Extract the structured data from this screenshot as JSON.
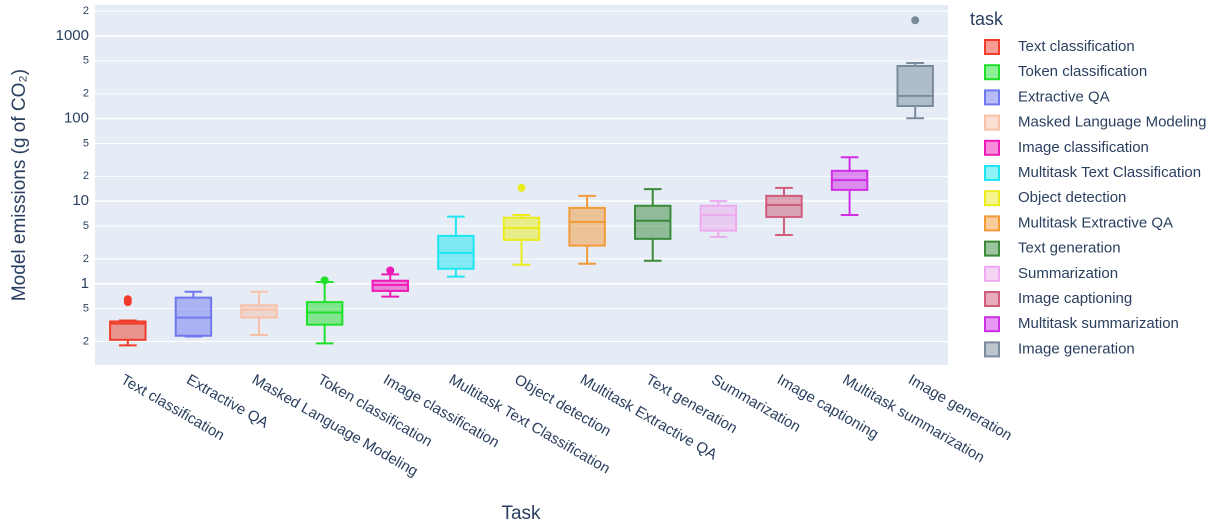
{
  "chart_data": {
    "type": "box",
    "y_label": "Model emissions (g of CO₂)",
    "x_label": "Task",
    "legend_title": "task",
    "log_y": true,
    "grid": true,
    "legend_position": "right",
    "categories": [
      "Text classification",
      "Extractive QA",
      "Masked Language Modeling",
      "Token classification",
      "Image classification",
      "Multitask Text Classification",
      "Object detection",
      "Multitask Extractive QA",
      "Text generation",
      "Summarization",
      "Image captioning",
      "Multitask summarization",
      "Image generation"
    ],
    "ylim": [
      0.104,
      2370
    ],
    "yticks": [
      {
        "value": 0.2,
        "label": "2"
      },
      {
        "value": 0.5,
        "label": "5"
      },
      1,
      {
        "value": 2,
        "label": "2"
      },
      {
        "value": 5,
        "label": "5"
      },
      10,
      {
        "value": 20,
        "label": "2"
      },
      {
        "value": 50,
        "label": "5"
      },
      100,
      {
        "value": 200,
        "label": "2"
      },
      {
        "value": 500,
        "label": "5"
      },
      1000,
      {
        "value": 2000,
        "label": "2"
      }
    ],
    "series": [
      {
        "name": "Text classification",
        "color": "#f03c28",
        "min": 0.18,
        "q1": 0.21,
        "median": 0.33,
        "q3": 0.35,
        "max": 0.36,
        "outliers": [
          0.6,
          0.65
        ]
      },
      {
        "name": "Token classification",
        "color": "#1fe02a",
        "min": 0.19,
        "q1": 0.32,
        "median": 0.45,
        "q3": 0.6,
        "max": 1.05,
        "outliers": [
          1.1
        ]
      },
      {
        "name": "Extractive QA",
        "color": "#6f78ee",
        "min": 0.23,
        "q1": 0.235,
        "median": 0.39,
        "q3": 0.68,
        "max": 0.8
      },
      {
        "name": "Masked Language Modeling",
        "color": "#f8c0a8",
        "min": 0.24,
        "q1": 0.39,
        "median": 0.485,
        "q3": 0.55,
        "max": 0.8
      },
      {
        "name": "Image classification",
        "color": "#ee1ab8",
        "min": 0.7,
        "q1": 0.82,
        "median": 0.97,
        "q3": 1.09,
        "max": 1.3,
        "outliers": [
          1.45
        ]
      },
      {
        "name": "Multitask Text Classification",
        "color": "#1ee6f0",
        "min": 1.22,
        "q1": 1.52,
        "median": 2.37,
        "q3": 3.8,
        "max": 6.5
      },
      {
        "name": "Object detection",
        "color": "#ecec1c",
        "min": 1.7,
        "q1": 3.4,
        "median": 4.75,
        "q3": 6.3,
        "max": 6.8,
        "outliers": [
          14.5
        ]
      },
      {
        "name": "Multitask Extractive QA",
        "color": "#f29a38",
        "min": 1.75,
        "q1": 2.9,
        "median": 5.6,
        "q3": 8.3,
        "max": 11.6
      },
      {
        "name": "Text generation",
        "color": "#3a8a3a",
        "min": 1.9,
        "q1": 3.5,
        "median": 5.8,
        "q3": 8.8,
        "max": 14
      },
      {
        "name": "Summarization",
        "color": "#eeaaee",
        "min": 3.7,
        "q1": 4.4,
        "median": 6.8,
        "q3": 8.8,
        "max": 10
      },
      {
        "name": "Image captioning",
        "color": "#d05c7a",
        "min": 3.9,
        "q1": 6.45,
        "median": 9,
        "q3": 11.6,
        "max": 14.5
      },
      {
        "name": "Multitask summarization",
        "color": "#d02ee6",
        "min": 6.8,
        "q1": 13.7,
        "median": 18,
        "q3": 23.3,
        "max": 34
      },
      {
        "name": "Image generation",
        "color": "#7a8c9c",
        "min": 101,
        "q1": 142,
        "median": 188,
        "q3": 433,
        "max": 470,
        "outliers": [
          1550
        ]
      }
    ]
  }
}
